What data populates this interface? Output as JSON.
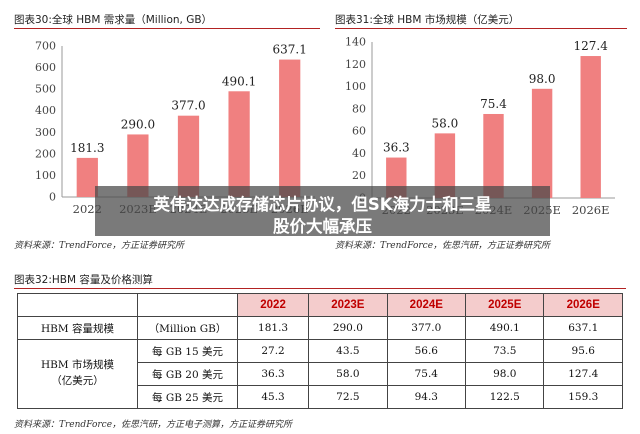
{
  "chart_data": [
    {
      "type": "bar",
      "title": "图表30:全球 HBM 需求量（Million, GB）",
      "categories": [
        "2022",
        "2023E",
        "2024E",
        "2025E",
        "2026E"
      ],
      "values": [
        181.3,
        290.0,
        377.0,
        490.1,
        637.1
      ],
      "value_labels": [
        "181.3",
        "290.0",
        "377.0",
        "490.1",
        "637.1"
      ],
      "ylim": [
        0,
        700
      ],
      "yticks": [
        "0",
        "100",
        "200",
        "300",
        "400",
        "500",
        "600",
        "700"
      ],
      "grid": false,
      "bar_color": "#f08080",
      "source": "资料来源：TrendForce，方正证券研究所"
    },
    {
      "type": "bar",
      "title": "图表31:全球 HBM 市场规模（亿美元）",
      "categories": [
        "2022",
        "2023E",
        "2024E",
        "2025E",
        "2026E"
      ],
      "values": [
        36.3,
        58.0,
        75.4,
        98.0,
        127.4
      ],
      "value_labels": [
        "36.3",
        "58.0",
        "75.4",
        "98.0",
        "127.4"
      ],
      "ylim": [
        0,
        140
      ],
      "yticks": [
        "0",
        "20",
        "40",
        "60",
        "80",
        "100",
        "120",
        "140"
      ],
      "grid": false,
      "bar_color": "#f08080",
      "source": "资料来源：TrendForce，佐思汽研，方正证券研究所"
    },
    {
      "type": "table",
      "title": "图表32:HBM 容量及价格测算",
      "columns": [
        "",
        "",
        "2022",
        "2023E",
        "2024E",
        "2025E",
        "2026E"
      ],
      "rows": [
        {
          "group": "HBM 容量规模",
          "label": "（Million GB）",
          "values": [
            "181.3",
            "290.0",
            "377.0",
            "490.1",
            "637.1"
          ]
        },
        {
          "group": "HBM 市场规模（亿美元）",
          "label": "每 GB 15 美元",
          "values": [
            "27.2",
            "43.5",
            "56.6",
            "73.5",
            "95.6"
          ]
        },
        {
          "group": "",
          "label": "每 GB 20 美元",
          "values": [
            "36.3",
            "58.0",
            "75.4",
            "98.0",
            "127.4"
          ]
        },
        {
          "group": "",
          "label": "每 GB 25 美元",
          "values": [
            "45.3",
            "72.5",
            "94.3",
            "122.5",
            "159.3"
          ]
        }
      ],
      "group_lines": [
        "HBM 市场规模",
        "（亿美元）"
      ],
      "source": "资料来源：TrendForce，佐思汽研，方正电子测算，方正证券研究所"
    }
  ],
  "overlay": {
    "line1": "英伟达达成存储芯片协议，但SK海力士和三星",
    "line2": "股价大幅承压"
  },
  "colors": {
    "bar": "#f08080",
    "title_rule": "#b22222",
    "header_bg": "#f4cccc",
    "header_text": "#c00000"
  }
}
